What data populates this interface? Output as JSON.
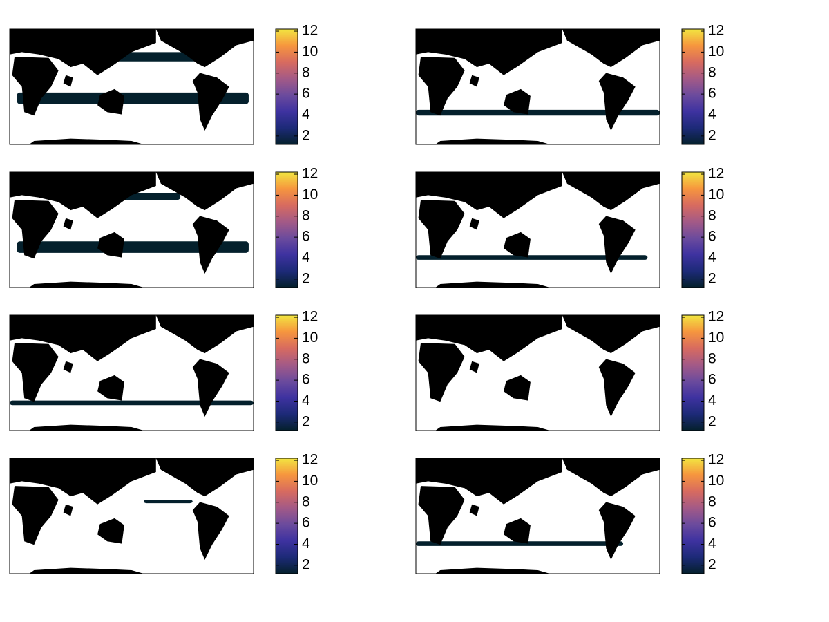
{
  "chart_data": [
    {
      "type": "map",
      "clim": [
        1.2,
        12.2
      ],
      "cticks": [
        2,
        4,
        6,
        8,
        10,
        12
      ],
      "colormap": [
        "#04202c",
        "#1d2a78",
        "#3e32a0",
        "#6c4b9d",
        "#a45a86",
        "#d86b5f",
        "#f6963e",
        "#f2e641"
      ]
    },
    {
      "type": "map",
      "clim": [
        1.2,
        12.2
      ],
      "cticks": [
        2,
        4,
        6,
        8,
        10,
        12
      ],
      "colormap": [
        "#04202c",
        "#1d2a78",
        "#3e32a0",
        "#6c4b9d",
        "#a45a86",
        "#d86b5f",
        "#f6963e",
        "#f2e641"
      ]
    },
    {
      "type": "map",
      "clim": [
        1.2,
        12.2
      ],
      "cticks": [
        2,
        4,
        6,
        8,
        10,
        12
      ],
      "colormap": [
        "#04202c",
        "#1d2a78",
        "#3e32a0",
        "#6c4b9d",
        "#a45a86",
        "#d86b5f",
        "#f6963e",
        "#f2e641"
      ]
    },
    {
      "type": "map",
      "clim": [
        1.2,
        12.2
      ],
      "cticks": [
        2,
        4,
        6,
        8,
        10,
        12
      ],
      "colormap": [
        "#04202c",
        "#1d2a78",
        "#3e32a0",
        "#6c4b9d",
        "#a45a86",
        "#d86b5f",
        "#f6963e",
        "#f2e641"
      ]
    },
    {
      "type": "map",
      "clim": [
        1.2,
        12.2
      ],
      "cticks": [
        2,
        4,
        6,
        8,
        10,
        12
      ],
      "colormap": [
        "#04202c",
        "#1d2a78",
        "#3e32a0",
        "#6c4b9d",
        "#a45a86",
        "#d86b5f",
        "#f6963e",
        "#f2e641"
      ]
    },
    {
      "type": "map",
      "clim": [
        1.2,
        12.2
      ],
      "cticks": [
        2,
        4,
        6,
        8,
        10,
        12
      ],
      "colormap": [
        "#04202c",
        "#1d2a78",
        "#3e32a0",
        "#6c4b9d",
        "#a45a86",
        "#d86b5f",
        "#f6963e",
        "#f2e641"
      ]
    },
    {
      "type": "map",
      "clim": [
        1.2,
        12.2
      ],
      "cticks": [
        2,
        4,
        6,
        8,
        10,
        12
      ],
      "colormap": [
        "#04202c",
        "#1d2a78",
        "#3e32a0",
        "#6c4b9d",
        "#a45a86",
        "#d86b5f",
        "#f6963e",
        "#f2e641"
      ]
    },
    {
      "type": "map",
      "clim": [
        1.2,
        12.2
      ],
      "cticks": [
        2,
        4,
        6,
        8,
        10,
        12
      ],
      "colormap": [
        "#04202c",
        "#1d2a78",
        "#3e32a0",
        "#6c4b9d",
        "#a45a86",
        "#d86b5f",
        "#f6963e",
        "#f2e641"
      ]
    }
  ]
}
